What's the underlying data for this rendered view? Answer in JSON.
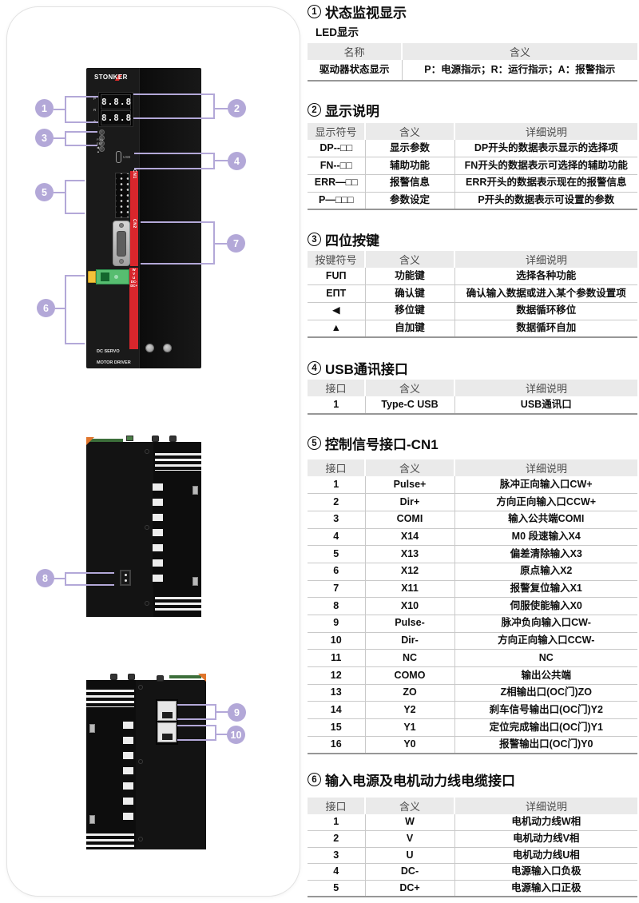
{
  "device_panel": {
    "callouts": [
      "1",
      "2",
      "3",
      "4",
      "5",
      "6",
      "7",
      "8",
      "9",
      "10"
    ],
    "front_view": {
      "brand": "STONKER",
      "display_rows": [
        "8.8.8",
        "8.8.8"
      ],
      "led_labels": [
        "P",
        "R",
        "A"
      ],
      "button_labels": [
        "FUN",
        "ENT",
        "◀",
        "▲"
      ],
      "usb_label": "USB",
      "cn1_label": "CN1",
      "cn2_label": "CN2",
      "terminal_labels": [
        "W",
        "V",
        "U",
        "DC-",
        "DC+"
      ],
      "footer_line1": "DC SERVO",
      "footer_line2": "MOTOR DRIVER"
    }
  },
  "sections": [
    {
      "number": "1",
      "title": "状态监视显示",
      "subtitle": "LED显示",
      "table": {
        "headers": [
          "名称",
          "含义"
        ],
        "rows": [
          [
            "驱动器状态显示",
            "P：电源指示；R：运行指示；A：报警指示"
          ]
        ]
      }
    },
    {
      "number": "2",
      "title": "显示说明",
      "table": {
        "headers": [
          "显示符号",
          "含义",
          "详细说明"
        ],
        "rows": [
          [
            "DP--□□",
            "显示参数",
            "DP开头的数据表示显示的选择项"
          ],
          [
            "FN--□□",
            "辅助功能",
            "FN开头的数据表示可选择的辅助功能"
          ],
          [
            "ERR—□□",
            "报警信息",
            "ERR开头的数据表示现在的报警信息"
          ],
          [
            "P—□□□",
            "参数设定",
            "P开头的数据表示可设置的参数"
          ]
        ]
      }
    },
    {
      "number": "3",
      "title": "四位按键",
      "table": {
        "headers": [
          "按键符号",
          "含义",
          "详细说明"
        ],
        "rows": [
          [
            "FUΠ",
            "功能键",
            "选择各种功能"
          ],
          [
            "EΠT",
            "确认键",
            "确认输入数据或进入某个参数设置项"
          ],
          [
            "◀",
            "移位键",
            "数据循环移位"
          ],
          [
            "▲",
            "自加键",
            "数据循环自加"
          ]
        ]
      }
    },
    {
      "number": "4",
      "title": "USB通讯接口",
      "table": {
        "headers": [
          "接口",
          "含义",
          "详细说明"
        ],
        "rows": [
          [
            "1",
            "Type-C USB",
            "USB通讯口"
          ]
        ]
      }
    },
    {
      "number": "5",
      "title": "控制信号接口-CN1",
      "table": {
        "headers": [
          "接口",
          "含义",
          "详细说明"
        ],
        "rows": [
          [
            "1",
            "Pulse+",
            "脉冲正向输入口CW+"
          ],
          [
            "2",
            "Dir+",
            "方向正向输入口CCW+"
          ],
          [
            "3",
            "COMI",
            "输入公共端COMI"
          ],
          [
            "4",
            "X14",
            "M0 段速输入X4"
          ],
          [
            "5",
            "X13",
            "偏差清除输入X3"
          ],
          [
            "6",
            "X12",
            "原点输入X2"
          ],
          [
            "7",
            "X11",
            "报警复位输入X1"
          ],
          [
            "8",
            "X10",
            "伺服使能输入X0"
          ],
          [
            "9",
            "Pulse-",
            "脉冲负向输入口CW-"
          ],
          [
            "10",
            "Dir-",
            "方向正向输入口CCW-"
          ],
          [
            "11",
            "NC",
            "NC"
          ],
          [
            "12",
            "COMO",
            "输出公共端"
          ],
          [
            "13",
            "ZO",
            "Z相输出口(OC门)ZO"
          ],
          [
            "14",
            "Y2",
            "刹车信号输出口(OC门)Y2"
          ],
          [
            "15",
            "Y1",
            "定位完成输出口(OC门)Y1"
          ],
          [
            "16",
            "Y0",
            "报警输出口(OC门)Y0"
          ]
        ]
      }
    },
    {
      "number": "6",
      "title": "输入电源及电机动力线电缆接口",
      "table": {
        "headers": [
          "接口",
          "含义",
          "详细说明"
        ],
        "rows": [
          [
            "1",
            "W",
            "电机动力线W相"
          ],
          [
            "2",
            "V",
            "电机动力线V相"
          ],
          [
            "3",
            "U",
            "电机动力线U相"
          ],
          [
            "4",
            "DC-",
            "电源输入口负极"
          ],
          [
            "5",
            "DC+",
            "电源输入口正极"
          ]
        ]
      }
    }
  ],
  "colors": {
    "callout_purple": "#b3a8d8",
    "table_header_bg": "#eaeaea",
    "strip_red": "#d9262c",
    "terminal_green": "#57bd70",
    "terminal_yellow": "#f2c23a"
  }
}
